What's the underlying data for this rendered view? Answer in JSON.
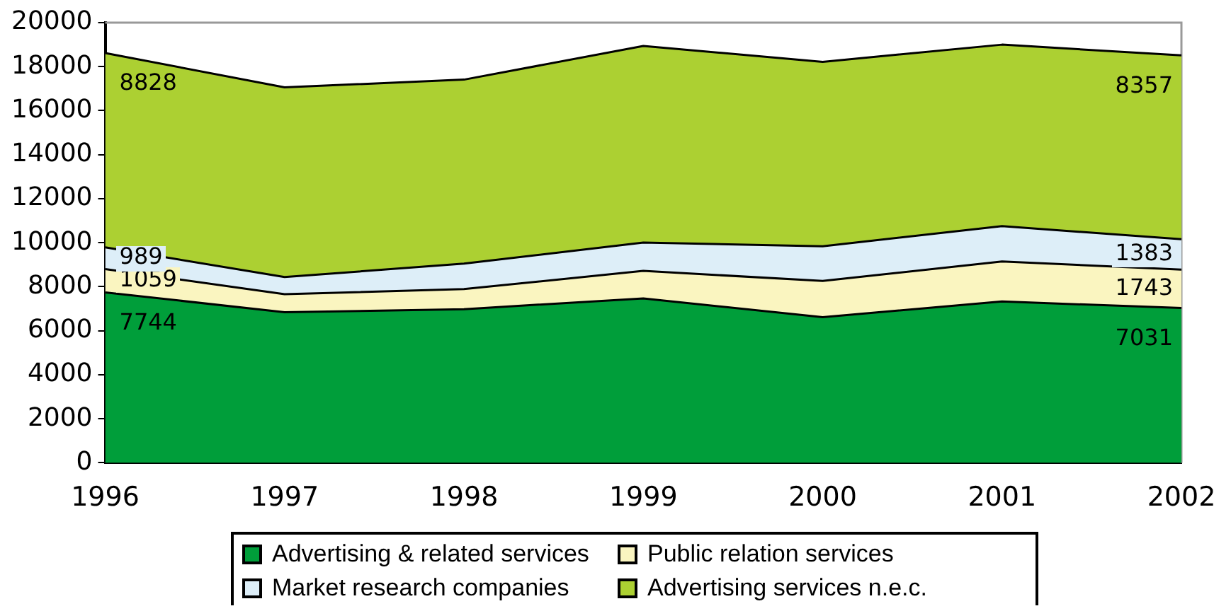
{
  "chart_data": {
    "type": "area",
    "stacked": true,
    "categories": [
      "1996",
      "1997",
      "1998",
      "1999",
      "2000",
      "2001",
      "2002"
    ],
    "series": [
      {
        "name": "Advertising & related services",
        "color": "#009e3a",
        "values": [
          7744,
          6840,
          6980,
          7470,
          6620,
          7330,
          7031
        ],
        "value_labels": [
          "7744",
          null,
          null,
          null,
          null,
          null,
          "7031"
        ]
      },
      {
        "name": "Public relation services",
        "color": "#faf5c0",
        "values": [
          1059,
          820,
          910,
          1250,
          1640,
          1820,
          1743
        ],
        "value_labels": [
          "1059",
          null,
          null,
          null,
          null,
          null,
          "1743"
        ]
      },
      {
        "name": "Market research companies",
        "color": "#ddeef8",
        "values": [
          989,
          780,
          1160,
          1290,
          1580,
          1600,
          1383
        ],
        "value_labels": [
          "989",
          null,
          null,
          null,
          null,
          null,
          "1383"
        ]
      },
      {
        "name": "Advertising services n.e.c.",
        "color": "#acd032",
        "values": [
          8828,
          8620,
          8360,
          8930,
          8380,
          8250,
          8357
        ],
        "value_labels": [
          "8828",
          null,
          null,
          null,
          null,
          null,
          "8357"
        ]
      }
    ],
    "ylim": [
      0,
      20000
    ],
    "yticks": [
      0,
      2000,
      4000,
      6000,
      8000,
      10000,
      12000,
      14000,
      16000,
      18000,
      20000
    ],
    "grid": false,
    "legend": "bottom"
  }
}
